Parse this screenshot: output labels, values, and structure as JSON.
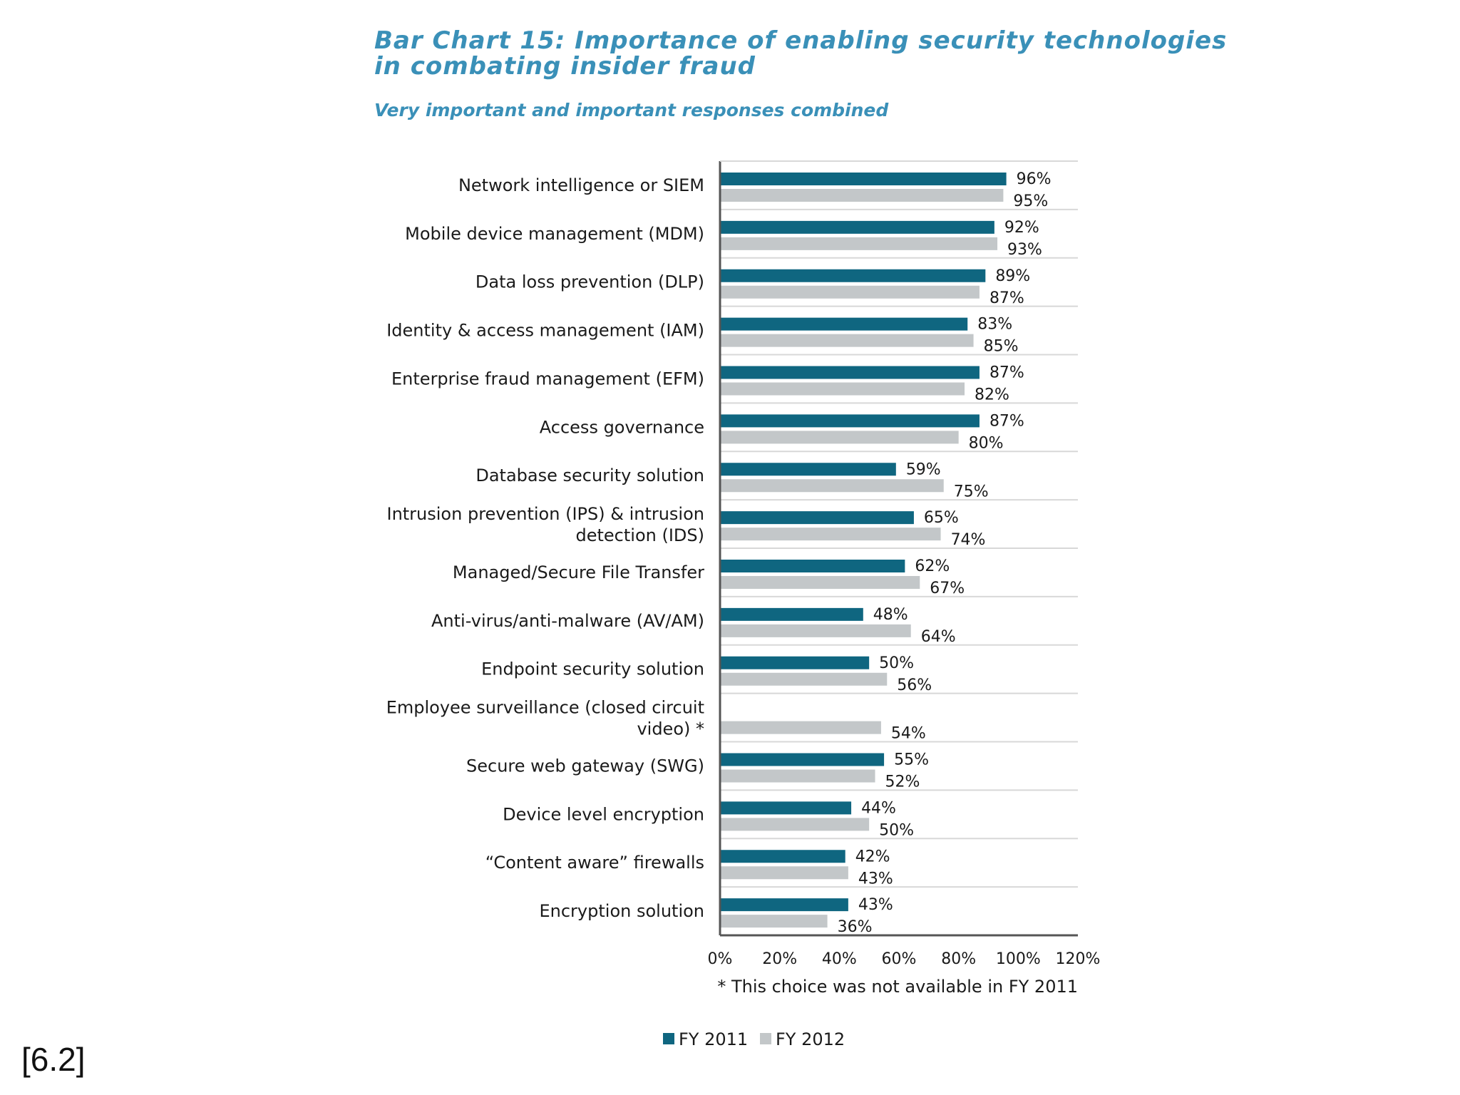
{
  "colors": {
    "fy2011": "#0f6680",
    "fy2012": "#c3c7c9",
    "title": "#3a90b8",
    "axis": "#555555",
    "grid": "#d8d8d8"
  },
  "reference": "[6.2]",
  "chart_data": {
    "type": "bar",
    "orientation": "horizontal",
    "title_line1": "Bar Chart 15: Importance of enabling security technologies",
    "title_line2": "in combating insider fraud",
    "subtitle": "Very important and important responses combined",
    "categories": [
      [
        "Network intelligence or SIEM"
      ],
      [
        "Mobile device management (MDM)"
      ],
      [
        "Data loss prevention (DLP)"
      ],
      [
        "Identity & access management (IAM)"
      ],
      [
        "Enterprise fraud management (EFM)"
      ],
      [
        "Access governance"
      ],
      [
        "Database security solution"
      ],
      [
        "Intrusion prevention (IPS) & intrusion",
        "detection (IDS)"
      ],
      [
        "Managed/Secure File Transfer"
      ],
      [
        "Anti-virus/anti-malware (AV/AM)"
      ],
      [
        "Endpoint security solution"
      ],
      [
        "Employee surveillance (closed circuit",
        "video) *"
      ],
      [
        "Secure web gateway (SWG)"
      ],
      [
        "Device level encryption"
      ],
      [
        "“Content aware” firewalls"
      ],
      [
        "Encryption solution"
      ]
    ],
    "series": [
      {
        "name": "FY 2011",
        "values": [
          96,
          92,
          89,
          83,
          87,
          87,
          59,
          65,
          62,
          48,
          50,
          null,
          55,
          44,
          42,
          43
        ],
        "labels": [
          "96%",
          "92%",
          "89%",
          "83%",
          "87%",
          "87%",
          "59%",
          "65%",
          "62%",
          "48%",
          "50%",
          null,
          "55%",
          "44%",
          "42%",
          "43%"
        ]
      },
      {
        "name": "FY 2012",
        "values": [
          95,
          93,
          87,
          85,
          82,
          80,
          75,
          74,
          67,
          64,
          56,
          54,
          52,
          50,
          43,
          36
        ],
        "labels": [
          "95%",
          "93%",
          "87%",
          "85%",
          "82%",
          "80%",
          "75%",
          "74%",
          "67%",
          "64%",
          "56%",
          "54%",
          "52%",
          "50%",
          "43%",
          "36%"
        ]
      }
    ],
    "xlim": [
      0,
      120
    ],
    "xticks": [
      0,
      20,
      40,
      60,
      80,
      100,
      120
    ],
    "xtick_labels": [
      "0%",
      "20%",
      "40%",
      "60%",
      "80%",
      "100%",
      "120%"
    ],
    "footnote": "* This choice was not available in FY 2011",
    "legend": [
      "FY 2011",
      "FY 2012"
    ],
    "legend_position": "bottom"
  }
}
